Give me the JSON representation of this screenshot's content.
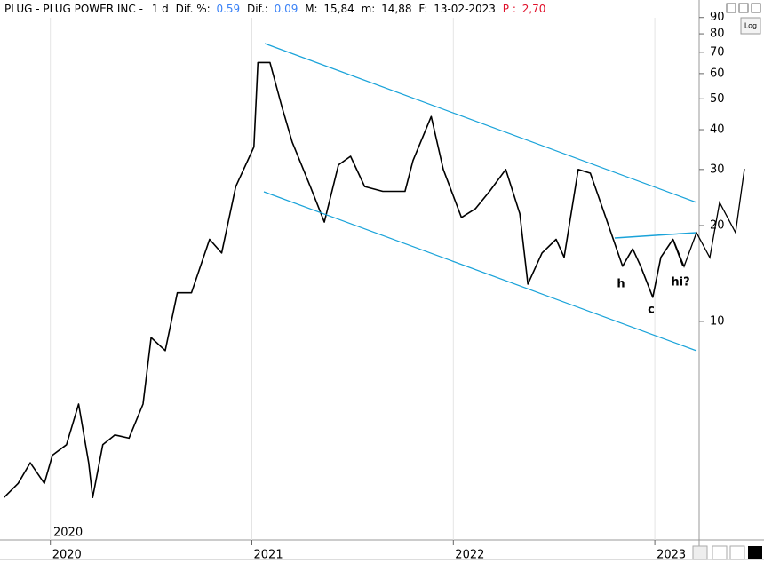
{
  "header": {
    "symbol": "PLUG - PLUG POWER INC -",
    "interval": "1 d",
    "dif_pct_label": "Dif. %:",
    "dif_pct": "0.59",
    "dif_label": "Dif.:",
    "dif": "0.09",
    "max_label": "M:",
    "max": "15,84",
    "min_label": "m:",
    "min": "14,88",
    "date_label": "F:",
    "date": "13-02-2023",
    "p_label": "P :",
    "p": "2,70"
  },
  "log_button": "Log",
  "corner_label": "2020",
  "chart_data": {
    "type": "line",
    "log_scale": true,
    "grid": true,
    "x": [
      2019.77,
      2019.84,
      2019.9,
      2019.97,
      2020.01,
      2020.08,
      2020.14,
      2020.19,
      2020.21,
      2020.26,
      2020.32,
      2020.39,
      2020.46,
      2020.5,
      2020.57,
      2020.63,
      2020.7,
      2020.79,
      2020.85,
      2020.92,
      2021.01,
      2021.03,
      2021.09,
      2021.15,
      2021.2,
      2021.29,
      2021.36,
      2021.43,
      2021.49,
      2021.56,
      2021.65,
      2021.76,
      2021.8,
      2021.89,
      2021.95,
      2022.04,
      2022.11,
      2022.18,
      2022.26,
      2022.33,
      2022.37,
      2022.44,
      2022.51,
      2022.55,
      2022.62,
      2022.68,
      2022.75,
      2022.84,
      2022.89,
      2022.93,
      2022.99,
      2023.03,
      2023.09,
      2023.14
    ],
    "series": [
      {
        "color": "#000000",
        "values": [
          2.8,
          3.1,
          3.6,
          3.1,
          3.8,
          4.1,
          5.5,
          3.6,
          2.8,
          4.1,
          4.4,
          4.3,
          5.5,
          8.9,
          8.1,
          12.3,
          12.3,
          18.1,
          16.4,
          26.5,
          35.3,
          65,
          65,
          47,
          36.6,
          26.5,
          20.5,
          31,
          33,
          26.5,
          25.6,
          25.6,
          32,
          44,
          30,
          21.2,
          22.6,
          25.6,
          30,
          21.8,
          13.1,
          16.4,
          18.1,
          15.9,
          30,
          29.2,
          21.8,
          14.9,
          16.9,
          14.9,
          11.9,
          15.9,
          18.1,
          14.9
        ]
      }
    ],
    "xlim": [
      2019.75,
      2023.22
    ],
    "xticks": [
      2020,
      2021,
      2022,
      2023
    ],
    "ylim": [
      2.06,
      91
    ],
    "yticks": [
      90,
      80,
      70,
      60,
      50,
      40,
      30,
      20,
      10
    ],
    "annotations": [
      "h",
      "c",
      "hi?"
    ]
  }
}
